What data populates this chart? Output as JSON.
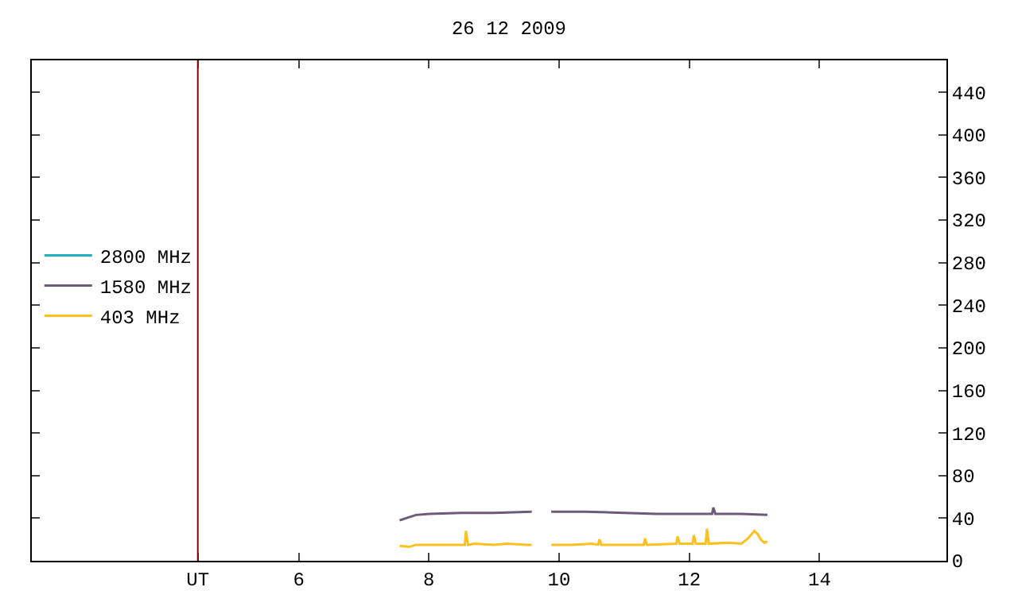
{
  "chart_data": {
    "type": "line",
    "title": "26 12 2009",
    "xlim": [
      1.9,
      15.95
    ],
    "xticks": [
      {
        "value": 4.45,
        "label": "UT"
      },
      6,
      8,
      10,
      12,
      14
    ],
    "ylim": [
      0,
      470
    ],
    "yticks": [
      0,
      40,
      80,
      120,
      160,
      200,
      240,
      280,
      320,
      360,
      400,
      440
    ],
    "legend": "left",
    "ref_lines": [
      {
        "axis": "x",
        "value": 4.45,
        "color": "#8b0000"
      }
    ],
    "series": [
      {
        "name": "2800 MHz",
        "color": "#20b0c0"
      },
      {
        "name": "1580 MHz",
        "color": "#6e5a7a",
        "x": [
          7.55,
          7.65,
          7.8,
          8.0,
          8.5,
          9.0,
          9.58,
          9.7,
          9.88,
          10.4,
          11.0,
          11.5,
          12.0,
          12.35,
          12.37,
          12.4,
          12.8,
          13.2
        ],
        "values": [
          38,
          40,
          43,
          44,
          45,
          45,
          46,
          null,
          46,
          46,
          45,
          44,
          44,
          44,
          50,
          44,
          44,
          43
        ]
      },
      {
        "name": "403 MHz",
        "color": "#ffc020",
        "x": [
          7.55,
          7.7,
          7.8,
          8.5,
          8.55,
          8.57,
          8.6,
          8.7,
          9.0,
          9.2,
          9.5,
          9.58,
          9.7,
          9.88,
          10.2,
          10.5,
          10.6,
          10.62,
          10.65,
          11.0,
          11.3,
          11.32,
          11.35,
          11.8,
          11.82,
          11.85,
          12.05,
          12.07,
          12.1,
          12.25,
          12.27,
          12.3,
          12.6,
          12.8,
          12.9,
          13.0,
          13.05,
          13.1,
          13.15,
          13.2
        ],
        "values": [
          14,
          13,
          15,
          15,
          15,
          28,
          15,
          16,
          15,
          16,
          15,
          15,
          null,
          15,
          15,
          16,
          15,
          20,
          15,
          15,
          15,
          21,
          15,
          16,
          23,
          16,
          16,
          24,
          16,
          16,
          30,
          16,
          17,
          16,
          21,
          28,
          25,
          20,
          17,
          18
        ]
      }
    ]
  }
}
